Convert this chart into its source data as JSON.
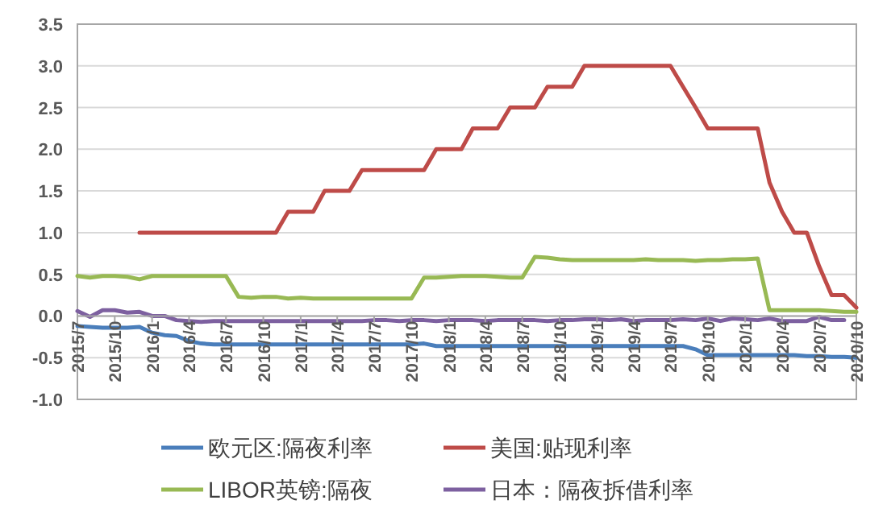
{
  "chart_data": {
    "type": "line",
    "x": [
      "2015-07",
      "2015-08",
      "2015-09",
      "2015-10",
      "2015-11",
      "2015-12",
      "2016-01",
      "2016-02",
      "2016-03",
      "2016-04",
      "2016-05",
      "2016-06",
      "2016-07",
      "2016-08",
      "2016-09",
      "2016-10",
      "2016-11",
      "2016-12",
      "2017-01",
      "2017-02",
      "2017-03",
      "2017-04",
      "2017-05",
      "2017-06",
      "2017-07",
      "2017-08",
      "2017-09",
      "2017-10",
      "2017-11",
      "2017-12",
      "2018-01",
      "2018-02",
      "2018-03",
      "2018-04",
      "2018-05",
      "2018-06",
      "2018-07",
      "2018-08",
      "2018-09",
      "2018-10",
      "2018-11",
      "2018-12",
      "2019-01",
      "2019-02",
      "2019-03",
      "2019-04",
      "2019-05",
      "2019-06",
      "2019-07",
      "2019-08",
      "2019-09",
      "2019-10",
      "2019-11",
      "2019-12",
      "2020-01",
      "2020-02",
      "2020-03",
      "2020-04",
      "2020-05",
      "2020-06",
      "2020-07",
      "2020-08",
      "2020-09",
      "2020-10"
    ],
    "series": [
      {
        "name": "欧元区:隔夜利率",
        "color": "#4a7ebb",
        "values": [
          -0.12,
          -0.13,
          -0.14,
          -0.14,
          -0.14,
          -0.13,
          -0.2,
          -0.23,
          -0.24,
          -0.3,
          -0.33,
          -0.34,
          -0.34,
          -0.34,
          -0.34,
          -0.34,
          -0.34,
          -0.34,
          -0.34,
          -0.34,
          -0.34,
          -0.34,
          -0.34,
          -0.34,
          -0.34,
          -0.34,
          -0.34,
          -0.34,
          -0.33,
          -0.36,
          -0.36,
          -0.36,
          -0.36,
          -0.36,
          -0.36,
          -0.36,
          -0.36,
          -0.36,
          -0.36,
          -0.36,
          -0.36,
          -0.36,
          -0.36,
          -0.36,
          -0.36,
          -0.36,
          -0.36,
          -0.36,
          -0.36,
          -0.36,
          -0.4,
          -0.47,
          -0.47,
          -0.47,
          -0.47,
          -0.47,
          -0.47,
          -0.47,
          -0.47,
          -0.48,
          -0.48,
          -0.49,
          -0.49,
          -0.5
        ]
      },
      {
        "name": "美国:贴现利率",
        "color": "#be4b48",
        "values": [
          null,
          null,
          null,
          null,
          null,
          1.0,
          1.0,
          1.0,
          1.0,
          1.0,
          1.0,
          1.0,
          1.0,
          1.0,
          1.0,
          1.0,
          1.0,
          1.25,
          1.25,
          1.25,
          1.5,
          1.5,
          1.5,
          1.75,
          1.75,
          1.75,
          1.75,
          1.75,
          1.75,
          2.0,
          2.0,
          2.0,
          2.25,
          2.25,
          2.25,
          2.5,
          2.5,
          2.5,
          2.75,
          2.75,
          2.75,
          3.0,
          3.0,
          3.0,
          3.0,
          3.0,
          3.0,
          3.0,
          3.0,
          2.75,
          2.5,
          2.25,
          2.25,
          2.25,
          2.25,
          2.25,
          1.6,
          1.25,
          1.0,
          1.0,
          0.6,
          0.25,
          0.25,
          0.1
        ]
      },
      {
        "name": "LIBOR英镑:隔夜",
        "color": "#98b954",
        "values": [
          0.48,
          0.46,
          0.48,
          0.48,
          0.47,
          0.44,
          0.48,
          0.48,
          0.48,
          0.48,
          0.48,
          0.48,
          0.48,
          0.23,
          0.22,
          0.23,
          0.23,
          0.21,
          0.22,
          0.21,
          0.21,
          0.21,
          0.21,
          0.21,
          0.21,
          0.21,
          0.21,
          0.21,
          0.46,
          0.46,
          0.47,
          0.48,
          0.48,
          0.48,
          0.47,
          0.46,
          0.46,
          0.71,
          0.7,
          0.68,
          0.67,
          0.67,
          0.67,
          0.67,
          0.67,
          0.67,
          0.68,
          0.67,
          0.67,
          0.67,
          0.66,
          0.67,
          0.67,
          0.68,
          0.68,
          0.69,
          0.07,
          0.07,
          0.07,
          0.07,
          0.07,
          0.06,
          0.05,
          0.05
        ]
      },
      {
        "name": "日本：隔夜拆借利率",
        "color": "#7d60a0",
        "values": [
          0.06,
          -0.01,
          0.07,
          0.07,
          0.04,
          0.05,
          0.0,
          0.0,
          -0.05,
          -0.06,
          -0.07,
          -0.06,
          -0.06,
          -0.06,
          -0.06,
          -0.06,
          -0.06,
          -0.06,
          -0.06,
          -0.06,
          -0.06,
          -0.06,
          -0.06,
          -0.06,
          -0.05,
          -0.05,
          -0.06,
          -0.05,
          -0.05,
          -0.06,
          -0.05,
          -0.05,
          -0.05,
          -0.06,
          -0.05,
          -0.05,
          -0.05,
          -0.05,
          -0.06,
          -0.05,
          -0.05,
          -0.04,
          -0.04,
          -0.05,
          -0.04,
          -0.06,
          -0.05,
          -0.05,
          -0.05,
          -0.04,
          -0.05,
          -0.03,
          -0.06,
          -0.03,
          -0.04,
          -0.05,
          -0.03,
          -0.06,
          -0.06,
          -0.06,
          -0.01,
          -0.05,
          -0.05,
          null
        ]
      }
    ],
    "xlim": [
      "2015-07",
      "2020-10"
    ],
    "xticks": [
      {
        "value": "2015-07",
        "label": "2015/7"
      },
      {
        "value": "2015-10",
        "label": "2015/10"
      },
      {
        "value": "2016-01",
        "label": "2016/1"
      },
      {
        "value": "2016-04",
        "label": "2016/4"
      },
      {
        "value": "2016-07",
        "label": "2016/7"
      },
      {
        "value": "2016-10",
        "label": "2016/10"
      },
      {
        "value": "2017-01",
        "label": "2017/1"
      },
      {
        "value": "2017-04",
        "label": "2017/4"
      },
      {
        "value": "2017-07",
        "label": "2017/7"
      },
      {
        "value": "2017-10",
        "label": "2017/10"
      },
      {
        "value": "2018-01",
        "label": "2018/1"
      },
      {
        "value": "2018-04",
        "label": "2018/4"
      },
      {
        "value": "2018-07",
        "label": "2018/7"
      },
      {
        "value": "2018-10",
        "label": "2018/10"
      },
      {
        "value": "2019-01",
        "label": "2019/1"
      },
      {
        "value": "2019-04",
        "label": "2019/4"
      },
      {
        "value": "2019-07",
        "label": "2019/7"
      },
      {
        "value": "2019-10",
        "label": "2019/10"
      },
      {
        "value": "2020-01",
        "label": "2020/1"
      },
      {
        "value": "2020-04",
        "label": "2020/4"
      },
      {
        "value": "2020-07",
        "label": "2020/7"
      },
      {
        "value": "2020-10",
        "label": "2020/10"
      }
    ],
    "ylim": [
      -1.0,
      3.5
    ],
    "yticks": [
      {
        "value": -1.0,
        "label": "-1.0"
      },
      {
        "value": -0.5,
        "label": "-0.5"
      },
      {
        "value": 0,
        "label": "0.0"
      },
      {
        "value": 0.5,
        "label": "0.5"
      },
      {
        "value": 1.0,
        "label": "1.0"
      },
      {
        "value": 1.5,
        "label": "1.5"
      },
      {
        "value": 2.0,
        "label": "2.0"
      },
      {
        "value": 2.5,
        "label": "2.5"
      },
      {
        "value": 3.0,
        "label": "3.0"
      },
      {
        "value": 3.5,
        "label": "3.5"
      }
    ],
    "grid": "y",
    "legend": "bottom",
    "marker": "none",
    "line_style": "solid"
  }
}
